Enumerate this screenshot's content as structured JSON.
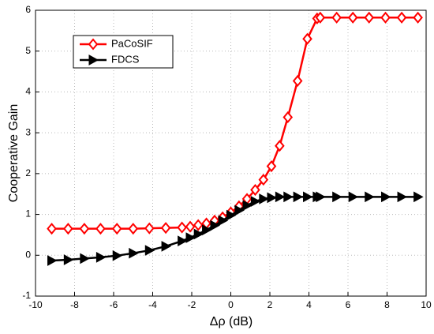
{
  "chart_data": {
    "type": "line",
    "xlabel": "Δρ  (dB)",
    "ylabel": "Cooperative Gain",
    "x": [
      -9.17,
      -8.33,
      -7.5,
      -6.67,
      -5.83,
      -5,
      -4.17,
      -3.33,
      -2.5,
      -2.08,
      -1.67,
      -1.25,
      -0.83,
      -0.42,
      0,
      0.42,
      0.83,
      1.25,
      1.67,
      2.08,
      2.5,
      2.92,
      3.42,
      3.92,
      4.42,
      4.58,
      5.42,
      6.25,
      7.08,
      7.92,
      8.75,
      9.58
    ],
    "series": [
      {
        "name": "PaCoSIF",
        "color": "#ff0000",
        "marker": "diamond",
        "values": [
          0.65,
          0.65,
          0.65,
          0.65,
          0.65,
          0.65,
          0.66,
          0.67,
          0.68,
          0.7,
          0.74,
          0.78,
          0.85,
          0.93,
          1.05,
          1.2,
          1.38,
          1.6,
          1.85,
          2.18,
          2.68,
          3.38,
          4.27,
          5.3,
          5.8,
          5.82,
          5.82,
          5.82,
          5.82,
          5.82,
          5.82,
          5.82
        ]
      },
      {
        "name": "FDCS",
        "color": "#000000",
        "marker": "triangle-right",
        "values": [
          -0.13,
          -0.11,
          -0.08,
          -0.05,
          -0.01,
          0.05,
          0.12,
          0.22,
          0.35,
          0.43,
          0.52,
          0.62,
          0.73,
          0.85,
          0.98,
          1.1,
          1.22,
          1.32,
          1.38,
          1.41,
          1.43,
          1.43,
          1.43,
          1.43,
          1.43,
          1.43,
          1.43,
          1.43,
          1.43,
          1.43,
          1.43,
          1.43
        ]
      }
    ],
    "xlim": [
      -10,
      10
    ],
    "xticks": [
      -10,
      -8,
      -6,
      -4,
      -2,
      0,
      2,
      4,
      6,
      8,
      10
    ],
    "ylim": [
      -1,
      6
    ],
    "yticks": [
      -1,
      0,
      1,
      2,
      3,
      4,
      5,
      6
    ],
    "grid": true,
    "legend": "upper left"
  }
}
